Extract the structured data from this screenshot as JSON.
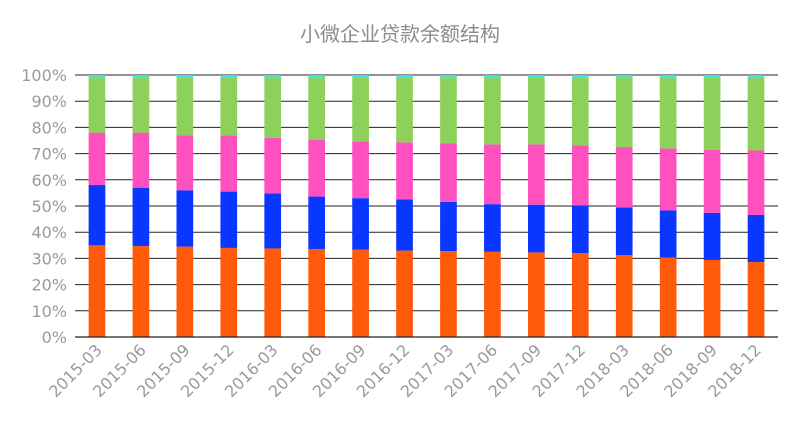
{
  "chart_data": {
    "type": "bar",
    "stacked": true,
    "title": "小微企业贷款余额结构",
    "ylim": [
      0,
      100
    ],
    "yticks": [
      "0%",
      "10%",
      "20%",
      "30%",
      "40%",
      "50%",
      "60%",
      "70%",
      "80%",
      "90%",
      "100%"
    ],
    "grid": true,
    "categories": [
      "2015-03",
      "2015-06",
      "2015-09",
      "2015-12",
      "2016-03",
      "2016-06",
      "2016-09",
      "2016-12",
      "2017-03",
      "2017-06",
      "2017-09",
      "2017-12",
      "2018-03",
      "2018-06",
      "2018-09",
      "2018-12"
    ],
    "series": [
      {
        "color": "#ff5a0a",
        "values": [
          35.0,
          34.7,
          34.5,
          34.0,
          33.8,
          33.6,
          33.4,
          33.0,
          32.8,
          32.5,
          32.3,
          32.0,
          31.2,
          30.3,
          29.4,
          28.6
        ]
      },
      {
        "color": "#0a37ff",
        "values": [
          23.0,
          22.3,
          21.5,
          21.5,
          21.0,
          20.0,
          19.6,
          19.5,
          18.8,
          18.2,
          18.2,
          18.2,
          18.3,
          18.0,
          18.0,
          18.0
        ]
      },
      {
        "color": "#ff50c0",
        "values": [
          20.0,
          21.0,
          21.0,
          21.5,
          21.2,
          21.6,
          21.7,
          21.8,
          22.4,
          22.8,
          23.0,
          23.0,
          23.0,
          23.7,
          24.0,
          24.6
        ]
      },
      {
        "color": "#8ed15a",
        "values": [
          21.0,
          21.0,
          22.0,
          22.0,
          23.0,
          23.8,
          24.3,
          24.7,
          25.0,
          25.5,
          25.5,
          25.8,
          26.5,
          27.0,
          27.6,
          27.8
        ]
      },
      {
        "color": "#3ee0e0",
        "values": [
          1.0,
          1.0,
          1.0,
          1.0,
          1.0,
          1.0,
          1.0,
          1.0,
          1.0,
          1.0,
          1.0,
          1.0,
          1.0,
          1.0,
          1.0,
          1.0
        ]
      }
    ]
  }
}
